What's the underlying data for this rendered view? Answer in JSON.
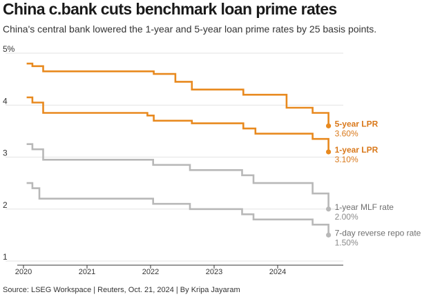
{
  "title": "China c.bank cuts benchmark loan prime rates",
  "subtitle": "China's central bank lowered the 1-year and 5-year loan prime rates by 25 basis points.",
  "source": "Source: LSEG Workspace | Reuters, Oct. 21, 2024 | By Kripa Jayaram",
  "chart_data": {
    "type": "line",
    "ylim": [
      1,
      5
    ],
    "xlim": [
      2020.0,
      2024.9
    ],
    "y_ticks": [
      {
        "value": 5,
        "label": "5%"
      },
      {
        "value": 4,
        "label": "4"
      },
      {
        "value": 3,
        "label": "3"
      },
      {
        "value": 2,
        "label": "2"
      },
      {
        "value": 1,
        "label": "1"
      }
    ],
    "x_ticks": [
      {
        "value": 2020.0,
        "label": "2020"
      },
      {
        "value": 2021.0,
        "label": "2021"
      },
      {
        "value": 2022.0,
        "label": "2022"
      },
      {
        "value": 2023.0,
        "label": "2023"
      },
      {
        "value": 2024.0,
        "label": "2024"
      }
    ],
    "grid": true,
    "series": [
      {
        "name": "5-year LPR",
        "end_label": "3.60%",
        "color": "#e8891e",
        "step": true,
        "points": [
          [
            2020.05,
            4.8
          ],
          [
            2020.14,
            4.75
          ],
          [
            2020.31,
            4.65
          ],
          [
            2022.05,
            4.6
          ],
          [
            2022.39,
            4.45
          ],
          [
            2022.65,
            4.3
          ],
          [
            2023.46,
            4.2
          ],
          [
            2024.14,
            3.95
          ],
          [
            2024.55,
            3.85
          ],
          [
            2024.8,
            3.6
          ]
        ]
      },
      {
        "name": "1-year LPR",
        "end_label": "3.10%",
        "color": "#e8891e",
        "step": true,
        "points": [
          [
            2020.05,
            4.15
          ],
          [
            2020.14,
            4.05
          ],
          [
            2020.31,
            3.85
          ],
          [
            2021.95,
            3.8
          ],
          [
            2022.05,
            3.7
          ],
          [
            2022.65,
            3.65
          ],
          [
            2023.46,
            3.55
          ],
          [
            2023.65,
            3.45
          ],
          [
            2024.55,
            3.35
          ],
          [
            2024.8,
            3.1
          ]
        ]
      },
      {
        "name": "1-year MLF rate",
        "end_label": "2.00%",
        "color": "#b8b8b8",
        "step": true,
        "points": [
          [
            2020.05,
            3.25
          ],
          [
            2020.14,
            3.15
          ],
          [
            2020.31,
            2.95
          ],
          [
            2022.04,
            2.85
          ],
          [
            2022.62,
            2.75
          ],
          [
            2023.44,
            2.65
          ],
          [
            2023.62,
            2.5
          ],
          [
            2024.55,
            2.3
          ],
          [
            2024.8,
            2.0
          ]
        ]
      },
      {
        "name": "7-day reverse repo rate",
        "end_label": "1.50%",
        "color": "#b8b8b8",
        "step": true,
        "points": [
          [
            2020.05,
            2.5
          ],
          [
            2020.14,
            2.4
          ],
          [
            2020.25,
            2.2
          ],
          [
            2022.04,
            2.1
          ],
          [
            2022.62,
            2.0
          ],
          [
            2023.44,
            1.9
          ],
          [
            2023.62,
            1.8
          ],
          [
            2024.55,
            1.7
          ],
          [
            2024.8,
            1.5
          ]
        ]
      }
    ]
  }
}
